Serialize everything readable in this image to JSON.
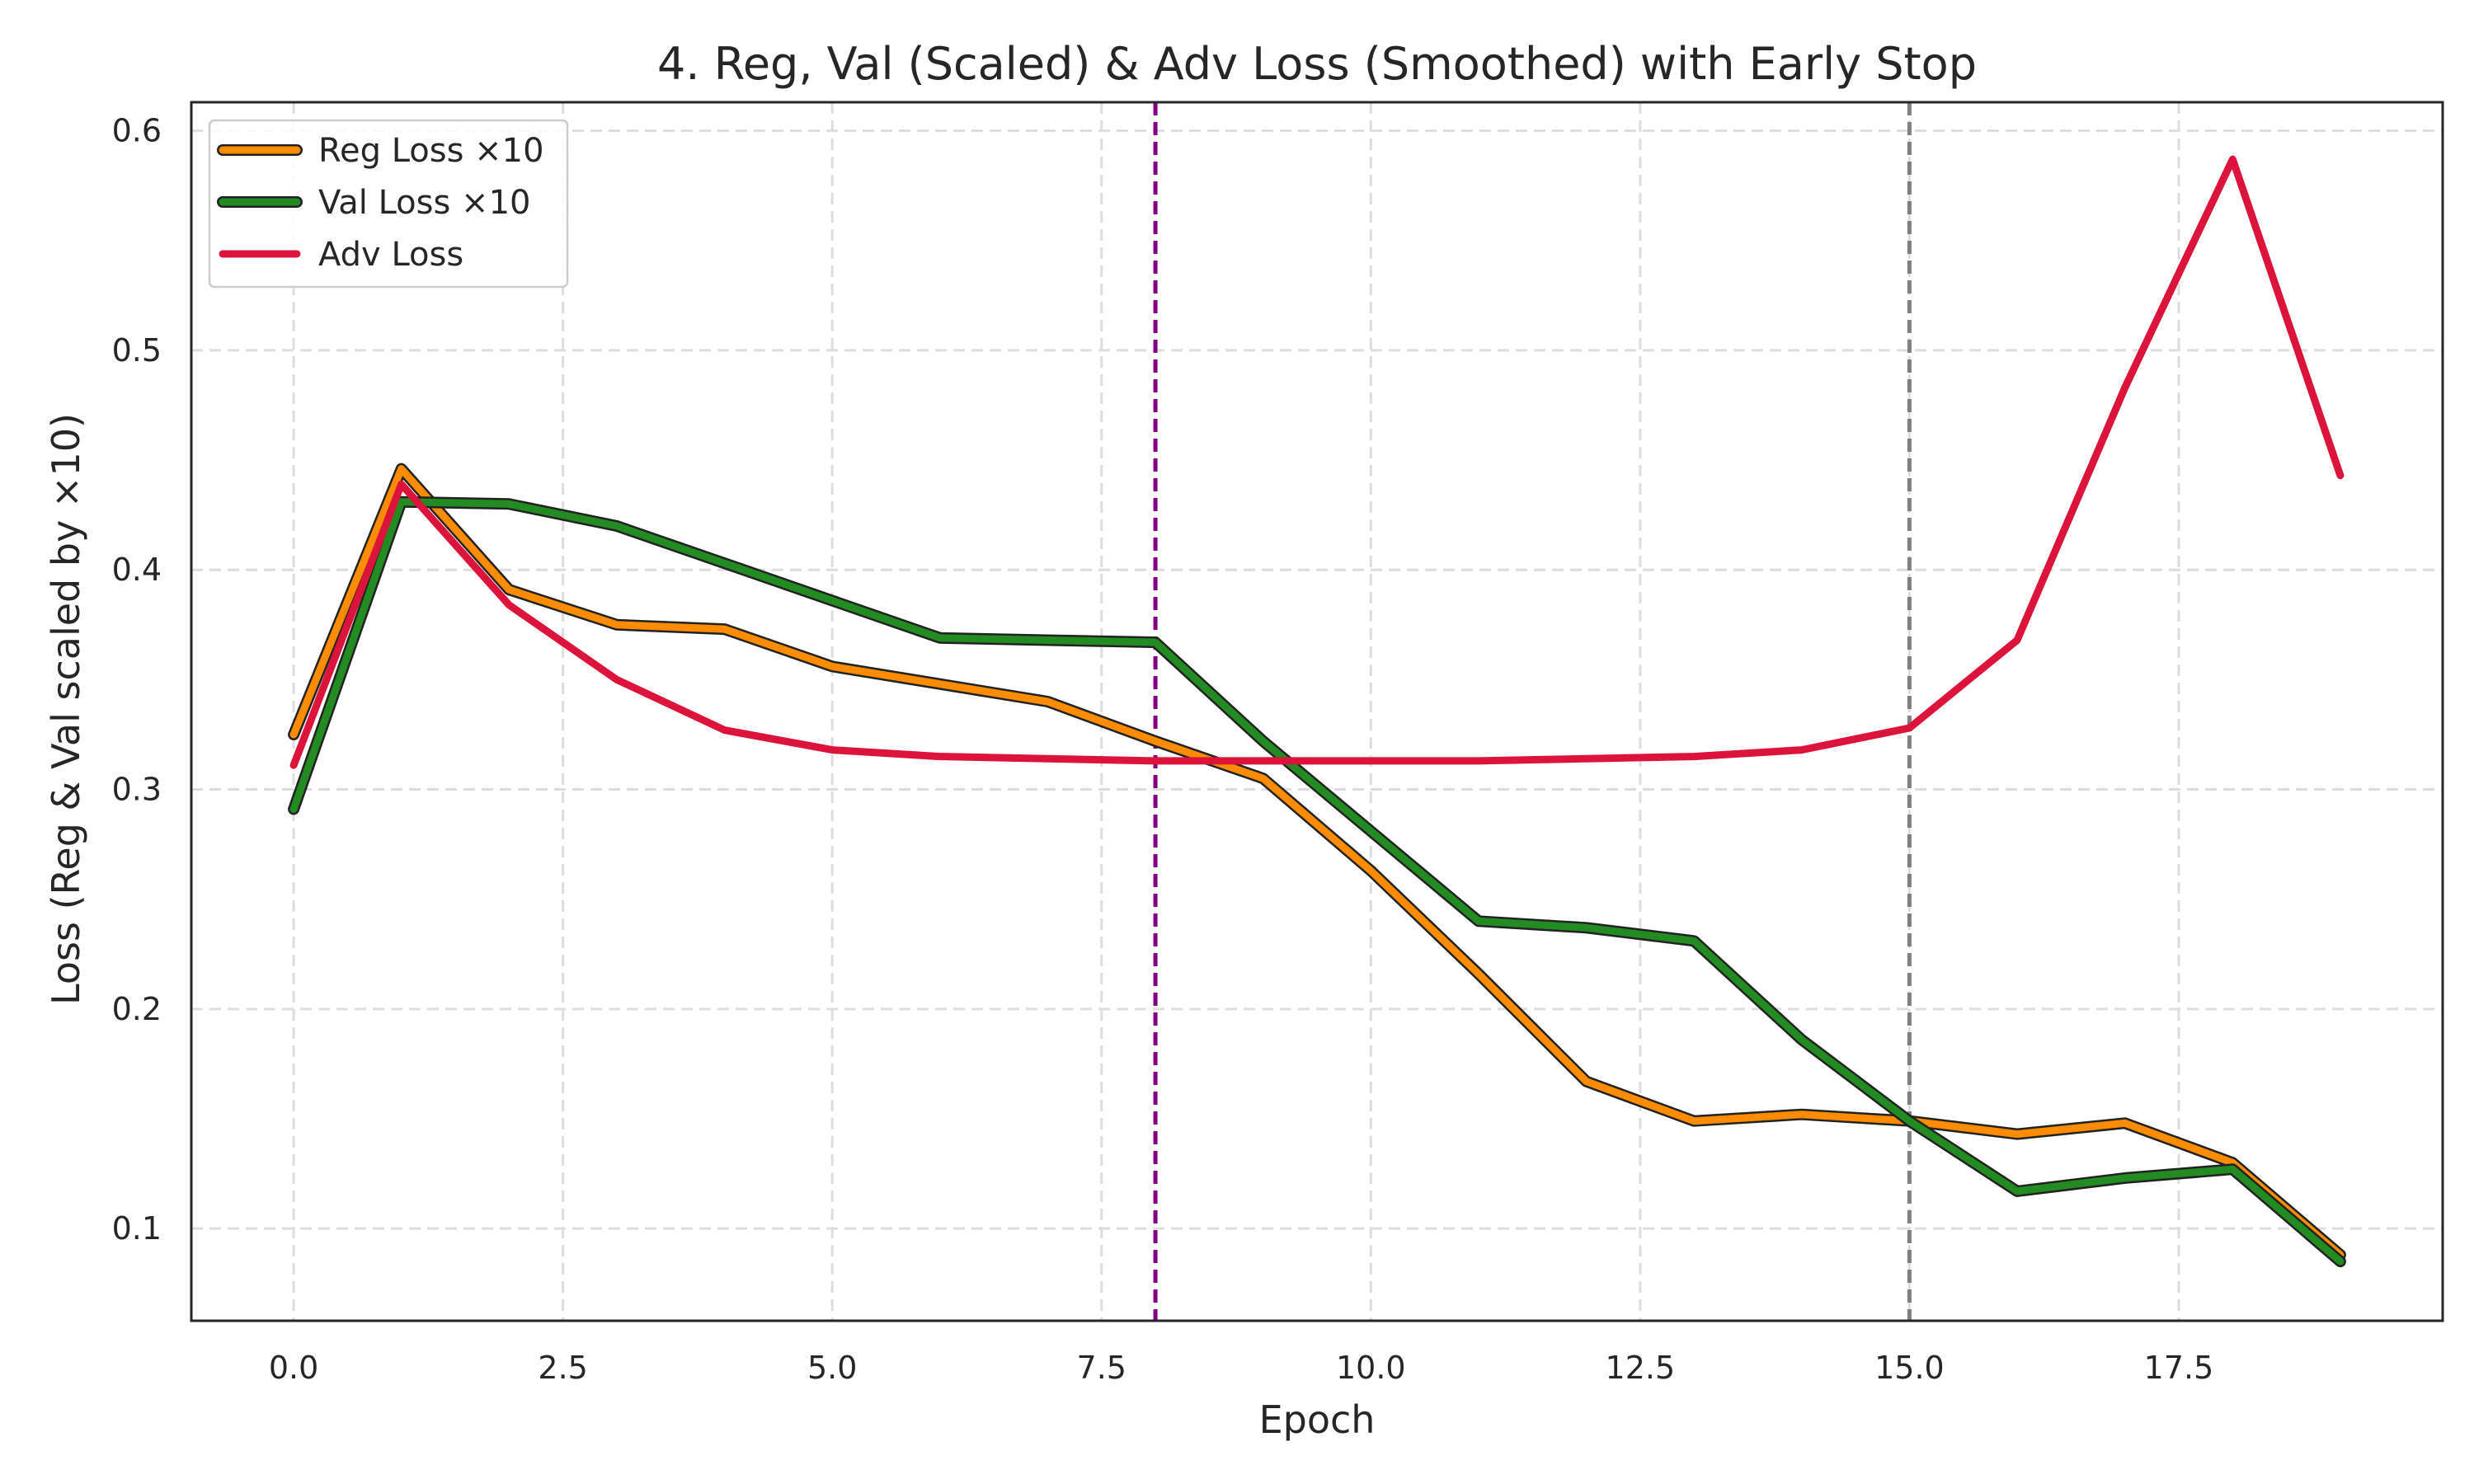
{
  "chart_data": {
    "type": "line",
    "title": "4. Reg, Val (Scaled) & Adv Loss (Smoothed) with Early Stop",
    "xlabel": "Epoch",
    "ylabel": "Loss (Reg & Val scaled by ×10)",
    "xlim": [
      -0.95,
      19.95
    ],
    "ylim": [
      0.058,
      0.613
    ],
    "xticks": [
      0.0,
      2.5,
      5.0,
      7.5,
      10.0,
      12.5,
      15.0,
      17.5
    ],
    "xtick_labels": [
      "0.0",
      "2.5",
      "5.0",
      "7.5",
      "10.0",
      "12.5",
      "15.0",
      "17.5"
    ],
    "yticks": [
      0.1,
      0.2,
      0.3,
      0.4,
      0.5,
      0.6
    ],
    "ytick_labels": [
      "0.1",
      "0.2",
      "0.3",
      "0.4",
      "0.5",
      "0.6"
    ],
    "grid": true,
    "legend_position": "top-left",
    "x": [
      0,
      1,
      2,
      3,
      4,
      5,
      6,
      7,
      8,
      9,
      10,
      11,
      12,
      13,
      14,
      15,
      16,
      17,
      18,
      19
    ],
    "series": [
      {
        "name": "Reg Loss ×10",
        "color": "#ff8c00",
        "values": [
          0.325,
          0.446,
          0.391,
          0.375,
          0.373,
          0.356,
          0.348,
          0.34,
          0.322,
          0.305,
          0.263,
          0.216,
          0.167,
          0.149,
          0.152,
          0.149,
          0.143,
          0.148,
          0.13,
          0.088
        ]
      },
      {
        "name": "Val Loss ×10",
        "color": "#228b22",
        "values": [
          0.291,
          0.431,
          0.43,
          0.42,
          0.403,
          0.386,
          0.369,
          0.368,
          0.367,
          0.322,
          0.281,
          0.24,
          0.237,
          0.231,
          0.186,
          0.149,
          0.117,
          0.123,
          0.127,
          0.085
        ]
      },
      {
        "name": "Adv Loss",
        "color": "#dc143c",
        "values": [
          0.311,
          0.439,
          0.384,
          0.35,
          0.327,
          0.318,
          0.315,
          0.314,
          0.313,
          0.313,
          0.313,
          0.313,
          0.314,
          0.315,
          0.318,
          0.328,
          0.368,
          0.483,
          0.587,
          0.443
        ]
      }
    ],
    "vlines": [
      {
        "x": 8,
        "color": "#800080"
      },
      {
        "x": 15,
        "color": "#808080"
      }
    ]
  }
}
